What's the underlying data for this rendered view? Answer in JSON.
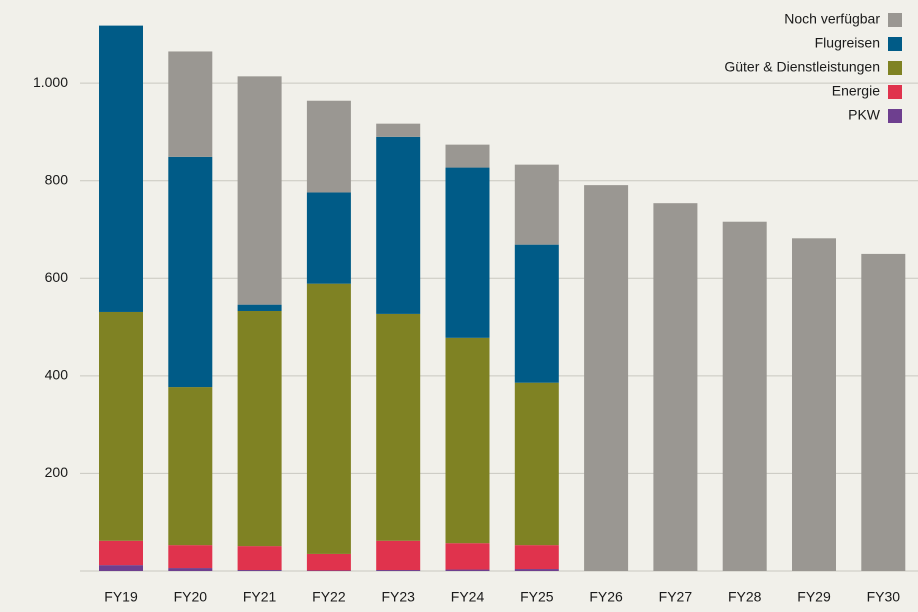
{
  "chart_data": {
    "type": "stacked_bar",
    "categories": [
      "FY19",
      "FY20",
      "FY21",
      "FY22",
      "FY23",
      "FY24",
      "FY25",
      "FY26",
      "FY27",
      "FY28",
      "FY29",
      "FY30"
    ],
    "series": [
      {
        "name": "PKW",
        "color": "#6e3f8f",
        "values": [
          12,
          6,
          2,
          1,
          2,
          3,
          4,
          null,
          null,
          null,
          null,
          null
        ]
      },
      {
        "name": "Energie",
        "color": "#e0334d",
        "values": [
          50,
          47,
          49,
          34,
          60,
          54,
          49,
          null,
          null,
          null,
          null,
          null
        ]
      },
      {
        "name": "Güter & Dienstleistungen",
        "color": "#7f8223",
        "values": [
          469,
          324,
          482,
          554,
          465,
          421,
          333,
          null,
          null,
          null,
          null,
          null
        ]
      },
      {
        "name": "Flugreisen",
        "color": "#005b87",
        "values": [
          587,
          472,
          13,
          187,
          363,
          349,
          283,
          null,
          null,
          null,
          null,
          null
        ]
      },
      {
        "name": "Noch verfügbar",
        "color": "#9a9792",
        "values": [
          0,
          216,
          468,
          188,
          27,
          47,
          164,
          791,
          754,
          716,
          682,
          650
        ]
      }
    ],
    "ylim": [
      0,
      1150
    ],
    "yticks": [
      200,
      400,
      600,
      800,
      {
        "value": 1000,
        "label": "1.000"
      }
    ],
    "grid": true,
    "legend": "top-right"
  }
}
